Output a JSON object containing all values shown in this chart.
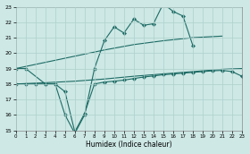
{
  "xlabel": "Humidex (Indice chaleur)",
  "xlim": [
    0,
    23
  ],
  "ylim": [
    15,
    23
  ],
  "yticks": [
    15,
    16,
    17,
    18,
    19,
    20,
    21,
    22,
    23
  ],
  "xticks": [
    0,
    1,
    2,
    3,
    4,
    5,
    6,
    7,
    8,
    9,
    10,
    11,
    12,
    13,
    14,
    15,
    16,
    17,
    18,
    19,
    20,
    21,
    22,
    23
  ],
  "bg_color": "#cde8e5",
  "line_color": "#1e6b65",
  "grid_color": "#aed0cc",
  "line1_x": [
    0,
    1,
    3,
    4,
    5,
    6,
    7,
    8,
    9,
    10,
    11,
    12,
    13,
    14,
    15,
    16,
    17,
    18
  ],
  "line1_y": [
    19.0,
    19.0,
    18.0,
    18.0,
    16.0,
    14.8,
    16.0,
    19.0,
    20.8,
    21.7,
    21.3,
    22.2,
    21.8,
    21.9,
    23.2,
    22.7,
    22.4,
    20.5
  ],
  "line2_x": [
    0,
    3,
    6,
    9,
    12,
    15,
    18,
    21
  ],
  "line2_y": [
    19.0,
    19.4,
    19.8,
    20.2,
    20.55,
    20.8,
    21.0,
    21.1
  ],
  "line3_x": [
    0,
    3,
    6,
    9,
    12,
    15,
    18,
    21,
    23
  ],
  "line3_y": [
    18.0,
    18.08,
    18.18,
    18.32,
    18.5,
    18.65,
    18.8,
    18.95,
    19.0
  ],
  "line4_x": [
    0,
    1,
    2,
    3,
    4,
    5,
    6,
    7,
    8,
    9,
    10,
    11,
    12,
    13,
    14,
    15,
    16,
    17,
    18,
    19,
    20,
    21,
    22,
    23
  ],
  "line4_y": [
    18.0,
    18.0,
    18.0,
    18.0,
    18.0,
    17.5,
    14.9,
    16.1,
    18.0,
    18.12,
    18.18,
    18.25,
    18.35,
    18.45,
    18.52,
    18.6,
    18.65,
    18.7,
    18.75,
    18.8,
    18.85,
    18.88,
    18.8,
    18.5
  ]
}
